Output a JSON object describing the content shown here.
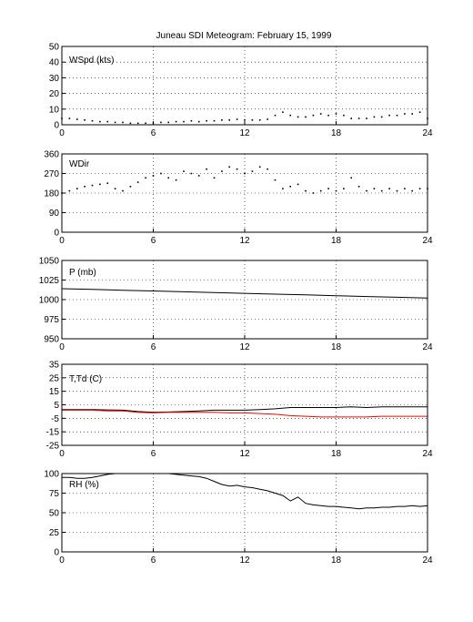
{
  "figure_title": "Juneau SDI Meteogram:  February 15, 1999",
  "chart_data": [
    {
      "type": "scatter",
      "label": "WSpd (kts)",
      "xlim": [
        0,
        24
      ],
      "ylim": [
        0,
        50
      ],
      "xticks": [
        0,
        6,
        12,
        18,
        24
      ],
      "yticks": [
        0,
        10,
        20,
        30,
        40,
        50
      ],
      "grid": true,
      "series": [
        {
          "color": "#000000",
          "x": [
            0,
            0.5,
            1,
            1.5,
            2,
            2.5,
            3,
            3.5,
            4,
            4.5,
            5,
            5.5,
            6,
            6.5,
            7,
            7.5,
            8,
            8.5,
            9,
            9.5,
            10,
            10.5,
            11,
            11.5,
            12,
            12.5,
            13,
            13.5,
            14,
            14.5,
            15,
            15.5,
            16,
            16.5,
            17,
            17.5,
            18,
            18.5,
            19,
            19.5,
            20,
            20.5,
            21,
            21.5,
            22,
            22.5,
            23,
            23.5,
            24
          ],
          "y": [
            4,
            4,
            3.5,
            3,
            2.5,
            2,
            2,
            1.5,
            1.5,
            1,
            1,
            1,
            1,
            1.5,
            1.5,
            2,
            2,
            2.5,
            2,
            2.5,
            2.5,
            3,
            3,
            3.5,
            3,
            3,
            3,
            3.5,
            6,
            8,
            6,
            5,
            5,
            6,
            7,
            6,
            7,
            6,
            4,
            4,
            4,
            5,
            5,
            6,
            6,
            7,
            7,
            8,
            4
          ]
        }
      ]
    },
    {
      "type": "scatter",
      "label": "WDir",
      "xlim": [
        0,
        24
      ],
      "ylim": [
        0,
        360
      ],
      "xticks": [
        0,
        6,
        12,
        18,
        24
      ],
      "yticks": [
        0,
        90,
        180,
        270,
        360
      ],
      "grid": true,
      "series": [
        {
          "color": "#000000",
          "x": [
            0,
            0.5,
            1,
            1.5,
            2,
            2.5,
            3,
            3.5,
            4,
            4.5,
            5,
            5.5,
            6,
            6.5,
            7,
            7.5,
            8,
            8.5,
            9,
            9.5,
            10,
            10.5,
            11,
            11.5,
            12,
            12.5,
            13,
            13.5,
            14,
            14.5,
            15,
            15.5,
            16,
            16.5,
            17,
            17.5,
            18,
            18.5,
            19,
            19.5,
            20,
            20.5,
            21,
            21.5,
            22,
            22.5,
            23,
            23.5,
            24
          ],
          "y": [
            180,
            190,
            200,
            210,
            215,
            220,
            225,
            200,
            190,
            210,
            230,
            250,
            260,
            270,
            250,
            240,
            280,
            270,
            260,
            290,
            250,
            280,
            300,
            290,
            270,
            280,
            300,
            290,
            240,
            200,
            210,
            220,
            190,
            180,
            190,
            200,
            190,
            200,
            250,
            210,
            190,
            200,
            190,
            200,
            190,
            200,
            190,
            200,
            200
          ]
        }
      ]
    },
    {
      "type": "line",
      "label": "P (mb)",
      "xlim": [
        0,
        24
      ],
      "ylim": [
        950,
        1050
      ],
      "xticks": [
        0,
        6,
        12,
        18,
        24
      ],
      "yticks": [
        950,
        975,
        1000,
        1025,
        1050
      ],
      "grid": true,
      "series": [
        {
          "color": "#000000",
          "x": [
            0,
            2,
            4,
            6,
            8,
            10,
            12,
            14,
            16,
            18,
            20,
            22,
            24
          ],
          "y": [
            1014,
            1013,
            1012,
            1011,
            1010,
            1009,
            1008,
            1007,
            1006,
            1005,
            1004,
            1003,
            1002
          ]
        }
      ]
    },
    {
      "type": "line",
      "label": "T,Td (C)",
      "xlim": [
        0,
        24
      ],
      "ylim": [
        -25,
        35
      ],
      "xticks": [
        0,
        6,
        12,
        18,
        24
      ],
      "yticks": [
        -25,
        -15,
        -5,
        5,
        15,
        25,
        35
      ],
      "grid": true,
      "series": [
        {
          "color": "#000000",
          "x": [
            0,
            1,
            2,
            3,
            4,
            5,
            6,
            7,
            8,
            9,
            10,
            11,
            12,
            13,
            14,
            15,
            16,
            17,
            18,
            19,
            20,
            21,
            22,
            23,
            24
          ],
          "y": [
            1.5,
            1.5,
            1.5,
            1.2,
            1,
            0,
            -0.5,
            -0.3,
            0,
            0.5,
            1,
            1,
            1,
            1.5,
            2,
            3,
            3,
            3,
            3,
            3.5,
            3,
            3.5,
            3.5,
            3.5,
            3.5
          ]
        },
        {
          "color": "#ff0000",
          "x": [
            0,
            1,
            2,
            3,
            4,
            5,
            6,
            7,
            8,
            9,
            10,
            11,
            12,
            13,
            14,
            15,
            16,
            17,
            18,
            19,
            20,
            21,
            22,
            23,
            24
          ],
          "y": [
            1,
            1,
            1,
            0.5,
            0.5,
            -0.5,
            -1,
            -0.5,
            -0.5,
            -0.5,
            -0.5,
            -1,
            -1,
            -1.5,
            -2,
            -3,
            -3.5,
            -4,
            -4,
            -4,
            -4,
            -3.5,
            -3.5,
            -3.5,
            -3.5
          ]
        }
      ]
    },
    {
      "type": "line",
      "label": "RH (%)",
      "xlim": [
        0,
        24
      ],
      "ylim": [
        0,
        100
      ],
      "xticks": [
        0,
        6,
        12,
        18,
        24
      ],
      "yticks": [
        0,
        25,
        50,
        75,
        100
      ],
      "grid": true,
      "series": [
        {
          "color": "#000000",
          "x": [
            0,
            0.5,
            1,
            1.5,
            2,
            2.5,
            3,
            3.5,
            6,
            6.5,
            7,
            7.5,
            8,
            8.5,
            9,
            9.5,
            10,
            10.5,
            11,
            11.5,
            12,
            12.5,
            13,
            13.5,
            14,
            14.5,
            15,
            15.5,
            16,
            16.5,
            17,
            17.5,
            18,
            18.5,
            19,
            19.5,
            20,
            20.5,
            21,
            21.5,
            22,
            22.5,
            23,
            23.5,
            24
          ],
          "y": [
            95,
            95,
            94,
            94,
            95,
            97,
            99,
            100,
            100,
            100,
            100,
            99,
            98,
            97,
            96,
            94,
            90,
            86,
            84,
            85,
            83,
            82,
            80,
            78,
            75,
            72,
            65,
            70,
            62,
            60,
            59,
            58,
            58,
            57,
            56,
            55,
            56,
            56,
            57,
            57,
            58,
            58,
            59,
            58,
            59
          ]
        }
      ]
    }
  ]
}
